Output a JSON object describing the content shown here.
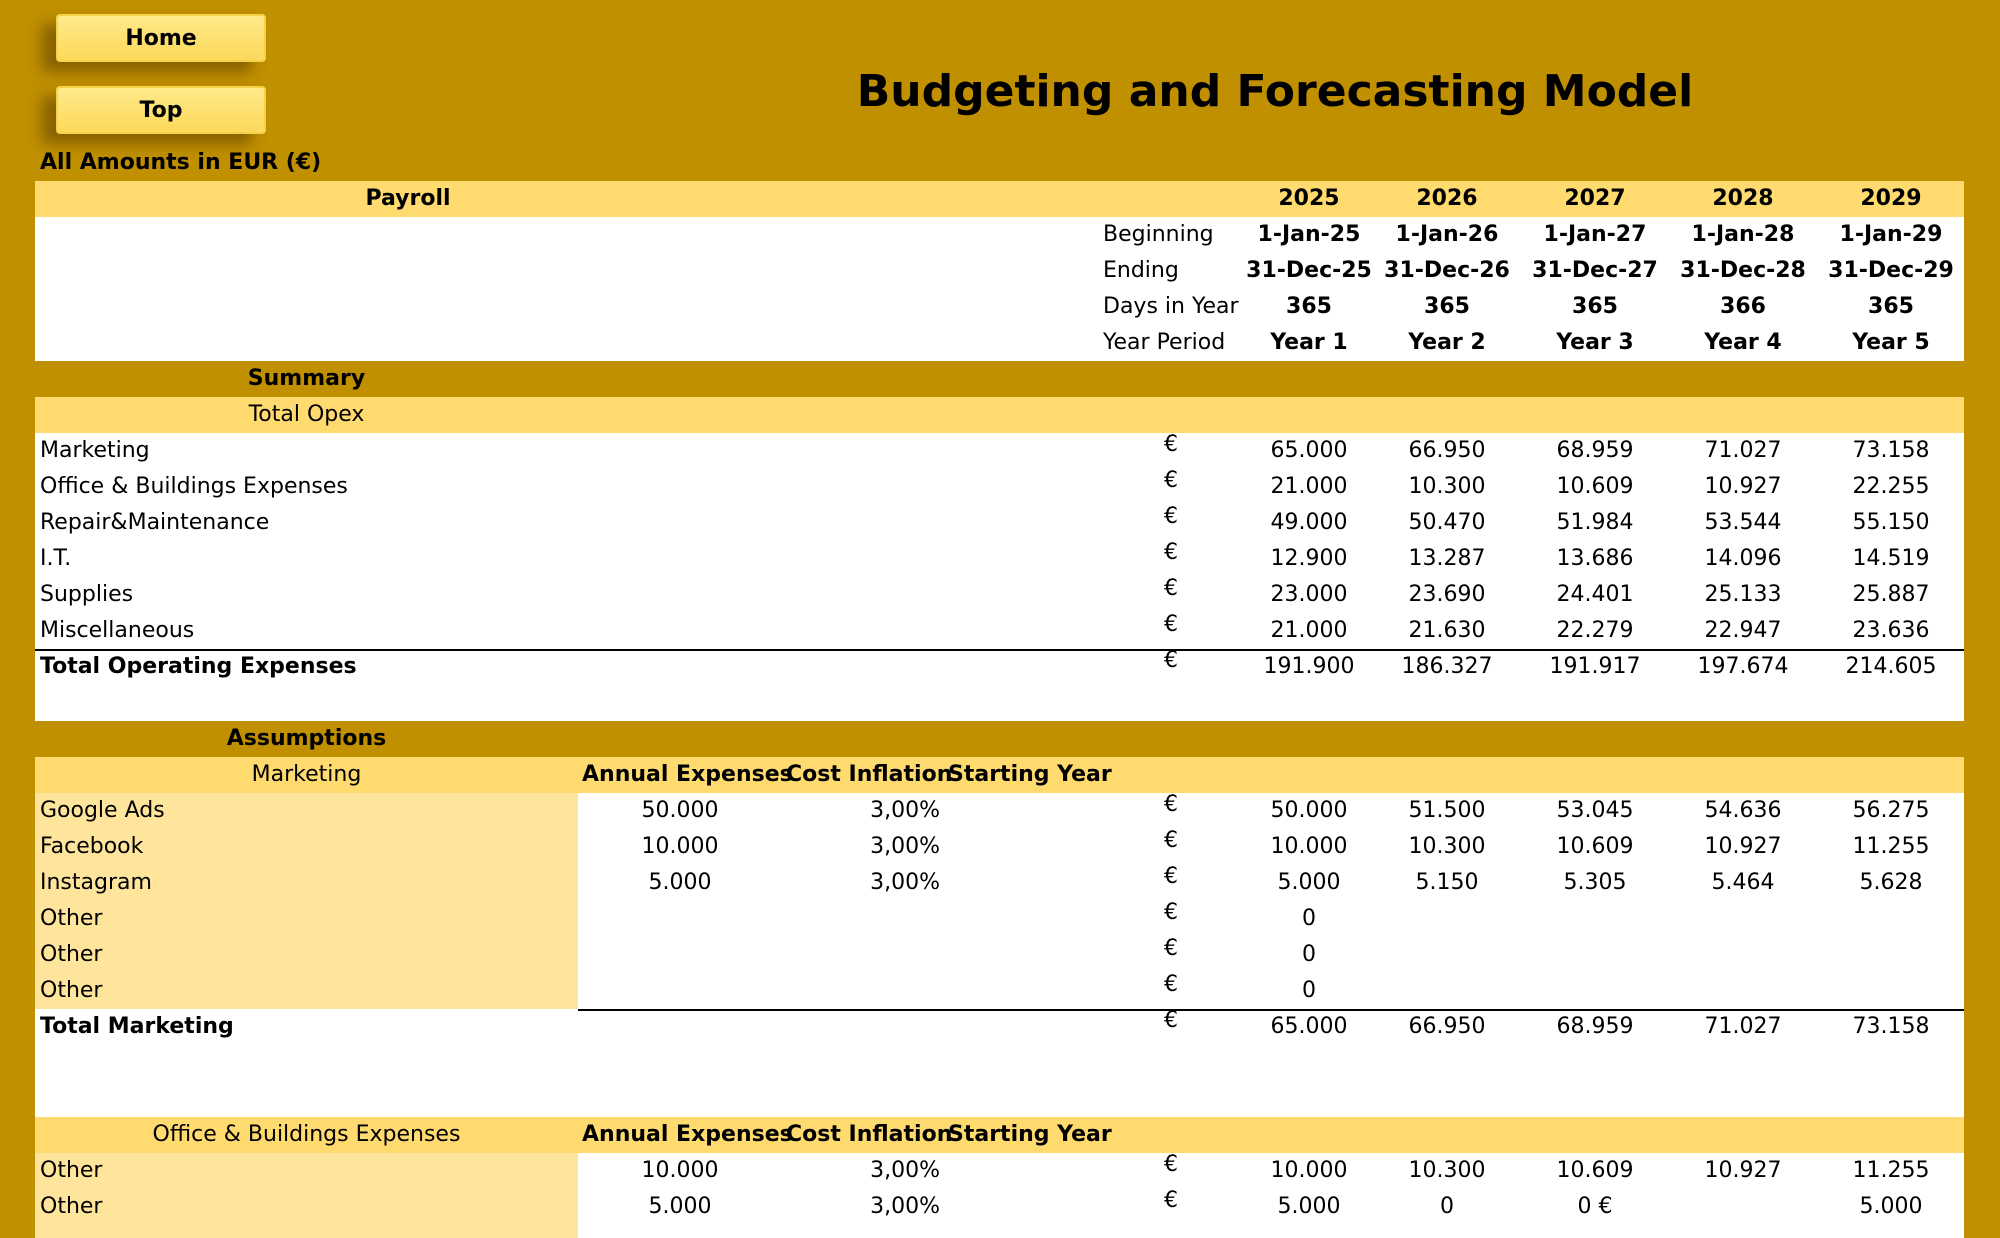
{
  "nav": {
    "home": "Home",
    "top": "Top"
  },
  "title": "Budgeting and Forecasting Model",
  "amount_note": "All Amounts in  EUR (€)",
  "payroll_header": "Payroll",
  "years": [
    "2025",
    "2026",
    "2027",
    "2028",
    "2029"
  ],
  "period_rows": [
    {
      "label": "Beginning",
      "values": [
        "1-Jan-25",
        "1-Jan-26",
        "1-Jan-27",
        "1-Jan-28",
        "1-Jan-29"
      ]
    },
    {
      "label": "Ending",
      "values": [
        "31-Dec-25",
        "31-Dec-26",
        "31-Dec-27",
        "31-Dec-28",
        "31-Dec-29"
      ]
    },
    {
      "label": "Days in Year",
      "values": [
        "365",
        "365",
        "365",
        "366",
        "365"
      ]
    },
    {
      "label": "Year Period",
      "values": [
        "Year 1",
        "Year 2",
        "Year 3",
        "Year 4",
        "Year 5"
      ]
    }
  ],
  "summary": {
    "header": "Summary",
    "subheader": "Total Opex",
    "currency": "€",
    "rows": [
      {
        "label": "Marketing",
        "values": [
          "65.000",
          "66.950",
          "68.959",
          "71.027",
          "73.158"
        ]
      },
      {
        "label": "Office & Buildings Expenses",
        "values": [
          "21.000",
          "10.300",
          "10.609",
          "10.927",
          "22.255"
        ]
      },
      {
        "label": "Repair&Maintenance",
        "values": [
          "49.000",
          "50.470",
          "51.984",
          "53.544",
          "55.150"
        ]
      },
      {
        "label": "I.T.",
        "values": [
          "12.900",
          "13.287",
          "13.686",
          "14.096",
          "14.519"
        ]
      },
      {
        "label": "Supplies",
        "values": [
          "23.000",
          "23.690",
          "24.401",
          "25.133",
          "25.887"
        ]
      },
      {
        "label": "Miscellaneous",
        "values": [
          "21.000",
          "21.630",
          "22.279",
          "22.947",
          "23.636"
        ]
      }
    ],
    "total": {
      "label": "Total Operating Expenses",
      "values": [
        "191.900",
        "186.327",
        "191.917",
        "197.674",
        "214.605"
      ]
    }
  },
  "assumptions": {
    "header": "Assumptions",
    "col_headers": {
      "annual": "Annual Expenses",
      "inflation": "Cost Inflation",
      "start": "Starting Year"
    },
    "marketing": {
      "title": "Marketing",
      "rows": [
        {
          "label": "Google Ads",
          "annual": "50.000",
          "inflation": "3,00%",
          "values": [
            "50.000",
            "51.500",
            "53.045",
            "54.636",
            "56.275"
          ]
        },
        {
          "label": "Facebook",
          "annual": "10.000",
          "inflation": "3,00%",
          "values": [
            "10.000",
            "10.300",
            "10.609",
            "10.927",
            "11.255"
          ]
        },
        {
          "label": "Instagram",
          "annual": "5.000",
          "inflation": "3,00%",
          "values": [
            "5.000",
            "5.150",
            "5.305",
            "5.464",
            "5.628"
          ]
        },
        {
          "label": "Other",
          "annual": "",
          "inflation": "",
          "values": [
            "0",
            "",
            "",
            "",
            ""
          ]
        },
        {
          "label": "Other",
          "annual": "",
          "inflation": "",
          "values": [
            "0",
            "",
            "",
            "",
            ""
          ]
        },
        {
          "label": "Other",
          "annual": "",
          "inflation": "",
          "values": [
            "0",
            "",
            "",
            "",
            ""
          ]
        }
      ],
      "total": {
        "label": "Total Marketing",
        "values": [
          "65.000",
          "66.950",
          "68.959",
          "71.027",
          "73.158"
        ]
      }
    },
    "office": {
      "title": "Office & Buildings Expenses",
      "rows": [
        {
          "label": "Other",
          "annual": "10.000",
          "inflation": "3,00%",
          "values": [
            "10.000",
            "10.300",
            "10.609",
            "10.927",
            "11.255"
          ]
        },
        {
          "label": "Other",
          "annual": "5.000",
          "inflation": "3,00%",
          "values": [
            "5.000",
            "0",
            "0 €",
            "",
            "5.000"
          ]
        }
      ]
    }
  }
}
